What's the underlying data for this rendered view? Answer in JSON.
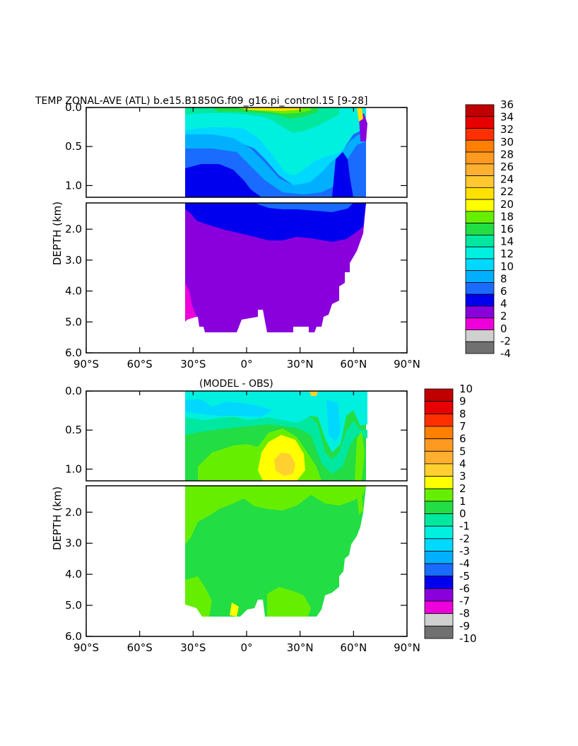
{
  "chart_data": [
    {
      "type": "heatmap",
      "title": "TEMP ZONAL-AVE (ATL) b.e15.B1850G.f09_g16.pi_control.15 [9-28]",
      "ylabel": "DEPTH (km)",
      "x_ticks": [
        "90°S",
        "60°S",
        "30°S",
        "0°",
        "30°N",
        "60°N",
        "90°N"
      ],
      "y_ticks_upper": [
        "0.0",
        "0.5",
        "1.0"
      ],
      "y_ticks_lower": [
        "2.0",
        "3.0",
        "4.0",
        "5.0",
        "6.0"
      ],
      "xlim": [
        -90,
        90
      ],
      "ylim": [
        0,
        6
      ],
      "colorbar_levels": [
        "36",
        "34",
        "32",
        "30",
        "28",
        "26",
        "24",
        "22",
        "20",
        "18",
        "16",
        "14",
        "12",
        "10",
        "8",
        "6",
        "4",
        "2",
        "0",
        "-2",
        "-4"
      ],
      "colorbar_colors": [
        "#c00000",
        "#e80000",
        "#ff3000",
        "#ff7f00",
        "#ff9a20",
        "#ffb030",
        "#ffc830",
        "#ffe000",
        "#ffff00",
        "#66ee00",
        "#22dd44",
        "#00e8a0",
        "#00f0e0",
        "#00d8ff",
        "#00b0ff",
        "#1a6bff",
        "#0000ee",
        "#8a00dd",
        "#ee00dd",
        "#d0d0d0",
        "#707070"
      ]
    },
    {
      "type": "heatmap",
      "title": "(MODEL - OBS)",
      "ylabel": "DEPTH (km)",
      "x_ticks": [
        "90°S",
        "60°S",
        "30°S",
        "0°",
        "30°N",
        "60°N",
        "90°N"
      ],
      "y_ticks_upper": [
        "0.0",
        "0.5",
        "1.0"
      ],
      "y_ticks_lower": [
        "2.0",
        "3.0",
        "4.0",
        "5.0",
        "6.0"
      ],
      "xlim": [
        -90,
        90
      ],
      "ylim": [
        0,
        6
      ],
      "colorbar_levels": [
        "10",
        "9",
        "8",
        "7",
        "6",
        "5",
        "4",
        "3",
        "2",
        "1",
        "0",
        "-1",
        "-2",
        "-3",
        "-4",
        "-5",
        "-6",
        "-7",
        "-8",
        "-9",
        "-10"
      ],
      "colorbar_colors": [
        "#c00000",
        "#e80000",
        "#ff3000",
        "#ff7f00",
        "#ff9a20",
        "#ffb030",
        "#ffd030",
        "#ffff00",
        "#66ee00",
        "#22dd44",
        "#00e8a0",
        "#00f0e0",
        "#00d8ff",
        "#00b0ff",
        "#1a6bff",
        "#0000ee",
        "#8a00dd",
        "#ee00dd",
        "#d0d0d0",
        "#707070"
      ]
    }
  ]
}
